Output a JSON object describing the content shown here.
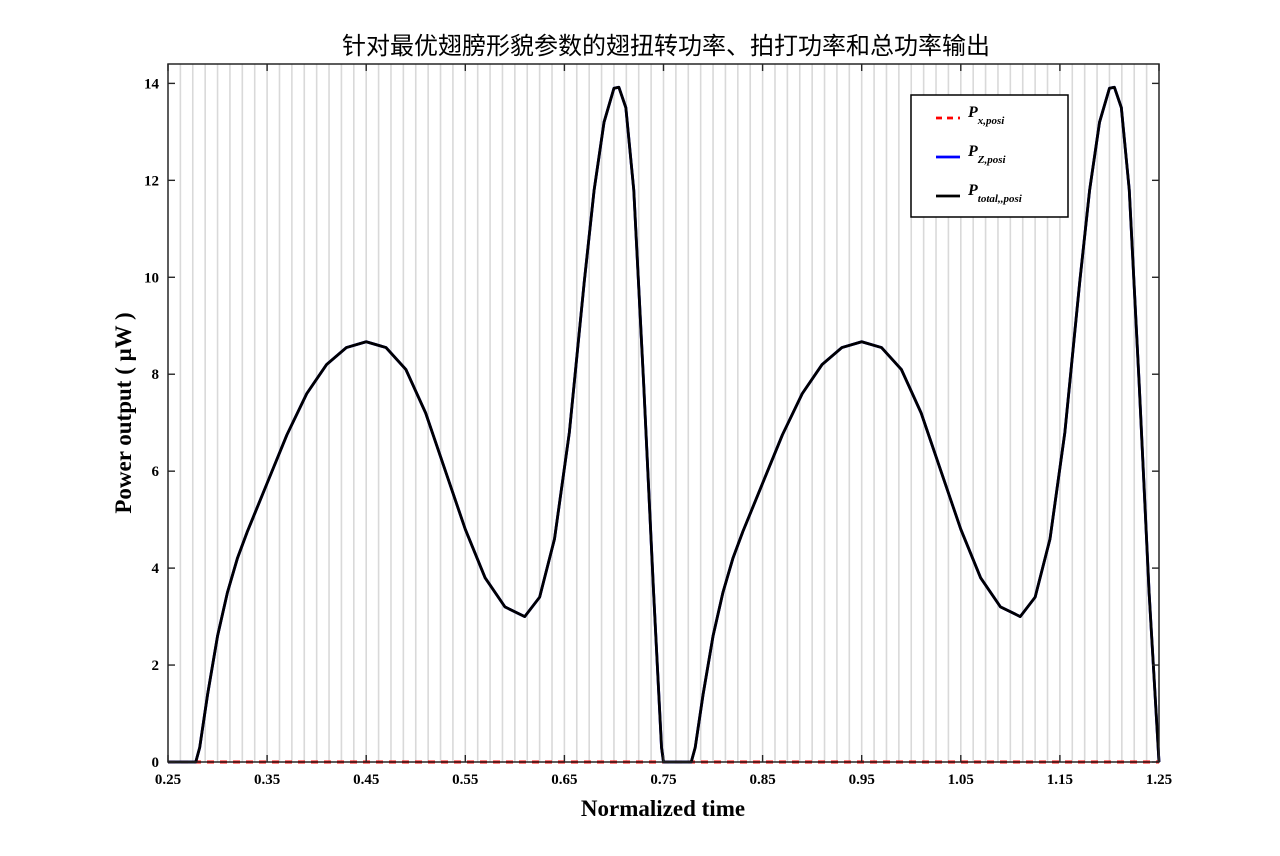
{
  "chart_data": {
    "type": "line",
    "title": "针对最优翅膀形貌参数的翅扭转功率、拍打功率和总功率输出",
    "xlabel": "Normalized time",
    "ylabel": "Power output ( μW )",
    "xlim": [
      0.25,
      1.25
    ],
    "ylim": [
      0,
      14.4
    ],
    "xticks": [
      0.25,
      0.35,
      0.45,
      0.55,
      0.65,
      0.75,
      0.85,
      0.95,
      1.05,
      1.15,
      1.25
    ],
    "xtick_labels": [
      "0.25",
      "0.35",
      "0.45",
      "0.55",
      "0.65",
      "0.75",
      "0.85",
      "0.95",
      "1.05",
      "1.15",
      "1.25"
    ],
    "yticks": [
      0,
      2,
      4,
      6,
      8,
      10,
      12,
      14
    ],
    "ytick_labels": [
      "0",
      "2",
      "4",
      "6",
      "8",
      "10",
      "12",
      "14"
    ],
    "vertical_gridlines": [
      0.2625,
      0.275,
      0.2875,
      0.3,
      0.3125,
      0.325,
      0.3375,
      0.35,
      0.3625,
      0.375,
      0.3875,
      0.4,
      0.4125,
      0.425,
      0.4375,
      0.45,
      0.4625,
      0.475,
      0.4875,
      0.5,
      0.5125,
      0.525,
      0.5375,
      0.55,
      0.5625,
      0.575,
      0.5875,
      0.6,
      0.6125,
      0.625,
      0.6375,
      0.65,
      0.6625,
      0.675,
      0.6875,
      0.7,
      0.7125,
      0.725,
      0.7375,
      0.75,
      0.7625,
      0.775,
      0.7875,
      0.8,
      0.8125,
      0.825,
      0.8375,
      0.85,
      0.8625,
      0.875,
      0.8875,
      0.9,
      0.9125,
      0.925,
      0.9375,
      0.95,
      0.9625,
      0.975,
      0.9875,
      1.0,
      1.0125,
      1.025,
      1.0375,
      1.05,
      1.0625,
      1.075,
      1.0875,
      1.1,
      1.1125,
      1.125,
      1.1375,
      1.15,
      1.1625,
      1.175,
      1.1875,
      1.2,
      1.2125,
      1.225,
      1.2375
    ],
    "grid_color": "#d9d9d9",
    "legend_position": "top-right",
    "series": [
      {
        "name": "P",
        "name_sub": "x,posi",
        "color": "#ff0000",
        "style": "dashed",
        "x": [
          0.25,
          1.25
        ],
        "y": [
          0,
          0
        ]
      },
      {
        "name": "P",
        "name_sub": "Z,posi",
        "color": "#0000ff",
        "style": "solid",
        "x": [
          0.25,
          0.278,
          0.282,
          0.29,
          0.3,
          0.31,
          0.32,
          0.33,
          0.35,
          0.37,
          0.39,
          0.41,
          0.43,
          0.45,
          0.47,
          0.49,
          0.51,
          0.53,
          0.55,
          0.57,
          0.59,
          0.61,
          0.625,
          0.64,
          0.655,
          0.67,
          0.68,
          0.69,
          0.7,
          0.705,
          0.712,
          0.72,
          0.73,
          0.74,
          0.748,
          0.75,
          0.778,
          0.782,
          0.79,
          0.8,
          0.81,
          0.82,
          0.83,
          0.85,
          0.87,
          0.89,
          0.91,
          0.93,
          0.95,
          0.97,
          0.99,
          1.01,
          1.03,
          1.05,
          1.07,
          1.09,
          1.11,
          1.125,
          1.14,
          1.155,
          1.17,
          1.18,
          1.19,
          1.2,
          1.205,
          1.212,
          1.22,
          1.23,
          1.24,
          1.25
        ],
        "y": [
          0,
          0,
          0.3,
          1.4,
          2.6,
          3.5,
          4.2,
          4.75,
          5.75,
          6.75,
          7.6,
          8.2,
          8.55,
          8.67,
          8.55,
          8.1,
          7.2,
          6.0,
          4.8,
          3.8,
          3.2,
          3.0,
          3.4,
          4.6,
          6.8,
          9.9,
          11.8,
          13.2,
          13.9,
          13.92,
          13.5,
          11.8,
          7.8,
          3.5,
          0.3,
          0,
          0,
          0.3,
          1.4,
          2.6,
          3.5,
          4.2,
          4.75,
          5.75,
          6.75,
          7.6,
          8.2,
          8.55,
          8.67,
          8.55,
          8.1,
          7.2,
          6.0,
          4.8,
          3.8,
          3.2,
          3.0,
          3.4,
          4.6,
          6.8,
          9.9,
          11.8,
          13.2,
          13.9,
          13.92,
          13.5,
          11.8,
          7.8,
          3.5,
          0
        ]
      },
      {
        "name": "P",
        "name_sub": "total,,posi",
        "color": "#000000",
        "style": "solid",
        "x": [
          0.25,
          0.278,
          0.282,
          0.29,
          0.3,
          0.31,
          0.32,
          0.33,
          0.35,
          0.37,
          0.39,
          0.41,
          0.43,
          0.45,
          0.47,
          0.49,
          0.51,
          0.53,
          0.55,
          0.57,
          0.59,
          0.61,
          0.625,
          0.64,
          0.655,
          0.67,
          0.68,
          0.69,
          0.7,
          0.705,
          0.712,
          0.72,
          0.73,
          0.74,
          0.748,
          0.75,
          0.778,
          0.782,
          0.79,
          0.8,
          0.81,
          0.82,
          0.83,
          0.85,
          0.87,
          0.89,
          0.91,
          0.93,
          0.95,
          0.97,
          0.99,
          1.01,
          1.03,
          1.05,
          1.07,
          1.09,
          1.11,
          1.125,
          1.14,
          1.155,
          1.17,
          1.18,
          1.19,
          1.2,
          1.205,
          1.212,
          1.22,
          1.23,
          1.24,
          1.25
        ],
        "y": [
          0,
          0,
          0.3,
          1.4,
          2.6,
          3.5,
          4.2,
          4.75,
          5.75,
          6.75,
          7.6,
          8.2,
          8.55,
          8.67,
          8.55,
          8.1,
          7.2,
          6.0,
          4.8,
          3.8,
          3.2,
          3.0,
          3.4,
          4.6,
          6.8,
          9.9,
          11.8,
          13.2,
          13.9,
          13.92,
          13.5,
          11.8,
          7.8,
          3.5,
          0.3,
          0,
          0,
          0.3,
          1.4,
          2.6,
          3.5,
          4.2,
          4.75,
          5.75,
          6.75,
          7.6,
          8.2,
          8.55,
          8.67,
          8.55,
          8.1,
          7.2,
          6.0,
          4.8,
          3.8,
          3.2,
          3.0,
          3.4,
          4.6,
          6.8,
          9.9,
          11.8,
          13.2,
          13.9,
          13.92,
          13.5,
          11.8,
          7.8,
          3.5,
          0
        ]
      }
    ]
  }
}
